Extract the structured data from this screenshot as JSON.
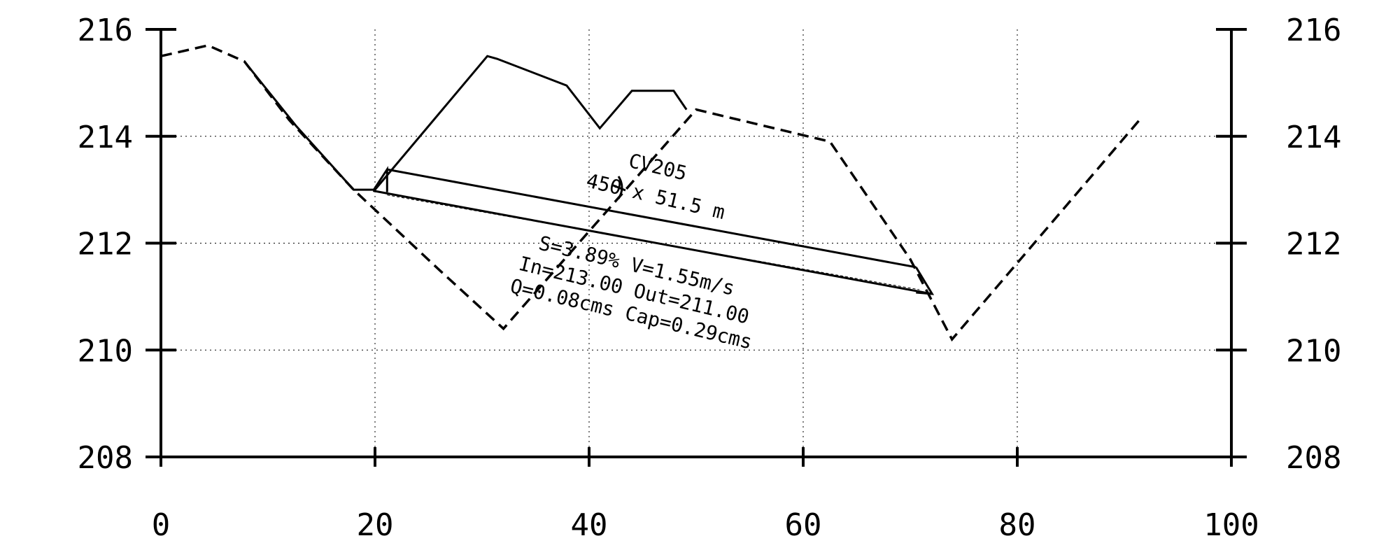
{
  "chart_data": {
    "type": "line",
    "title": "",
    "xlabel": "",
    "ylabel": "",
    "xlim": [
      0,
      100
    ],
    "ylim": [
      208,
      216
    ],
    "x_ticks": [
      "0",
      "20",
      "40",
      "60",
      "80",
      "100"
    ],
    "y_ticks": [
      "208",
      "210",
      "212",
      "214",
      "216"
    ],
    "grid": true,
    "series": [
      {
        "style": "dashed",
        "points": [
          [
            0,
            215.5
          ],
          [
            4.4,
            215.7
          ],
          [
            7.8,
            215.4
          ],
          [
            12,
            214.3
          ],
          [
            18,
            213.0
          ],
          [
            26,
            211.5
          ],
          [
            32,
            210.4
          ],
          [
            50,
            214.5
          ],
          [
            62.5,
            213.9
          ],
          [
            70,
            211.7
          ],
          [
            73.9,
            210.2
          ],
          [
            91.4,
            214.3
          ]
        ]
      },
      {
        "style": "solid",
        "points": [
          [
            7.8,
            215.4
          ],
          [
            12.6,
            214.2
          ],
          [
            18,
            213.0
          ],
          [
            20,
            213.0
          ],
          [
            30.5,
            215.5
          ],
          [
            31.4,
            215.45
          ],
          [
            37.9,
            214.95
          ],
          [
            41,
            214.15
          ],
          [
            44,
            214.85
          ],
          [
            47.9,
            214.85
          ],
          [
            49.1,
            214.5
          ]
        ]
      }
    ],
    "culvert": {
      "inlet_station": 21.0,
      "outlet_station": 71.0,
      "label_name": "CV205",
      "label_size": "450 x 51.5 m",
      "label_slope_velocity": "S=3.89% V=1.55m/s",
      "label_inverts": "In=213.00 Out=211.00",
      "label_flow": "Q=0.08cms Cap=0.29cms"
    }
  }
}
